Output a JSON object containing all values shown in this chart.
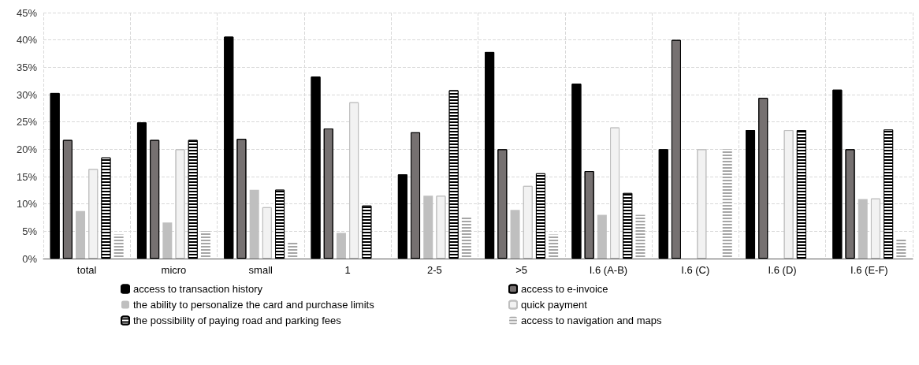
{
  "chart_data": {
    "type": "bar",
    "categories": [
      "total",
      "micro",
      "small",
      "1",
      "2-5",
      ">5",
      "I.6 (A-B)",
      "I.6 (C)",
      "I.6 (D)",
      "I.6 (E-F)"
    ],
    "series": [
      {
        "name": "access to transaction history",
        "color": "#000000",
        "values": [
          30.3,
          24.9,
          40.6,
          33.3,
          15.4,
          37.8,
          32.0,
          20.0,
          23.5,
          30.9
        ]
      },
      {
        "name": "access to e-invoice",
        "color": "#767171",
        "values": [
          21.7,
          21.7,
          21.9,
          23.8,
          23.1,
          20.0,
          16.0,
          40.0,
          29.4,
          20.0
        ]
      },
      {
        "name": "the ability to personalize the card and purchase limits",
        "color": "#bfbfbf",
        "values": [
          8.7,
          6.6,
          12.6,
          4.7,
          11.5,
          8.9,
          8.0,
          0,
          0,
          10.9
        ]
      },
      {
        "name": "quick payment",
        "color": "#f2f2f2",
        "values": [
          16.4,
          20.0,
          9.4,
          28.6,
          11.5,
          13.3,
          24.0,
          20.0,
          23.5,
          11.0
        ]
      },
      {
        "name": "the possibility of paying road and parking fees",
        "color": "#000000",
        "values": [
          18.5,
          21.7,
          12.6,
          9.7,
          30.8,
          15.6,
          12.0,
          0,
          23.5,
          23.6
        ]
      },
      {
        "name": "access to navigation and maps",
        "color": "#ffffff",
        "values": [
          4.4,
          5.0,
          3.1,
          0,
          7.7,
          4.4,
          8.0,
          20.0,
          0,
          3.6
        ]
      }
    ],
    "ylim": [
      0,
      45
    ],
    "yticks": [
      {
        "value": 0,
        "label": "0%"
      },
      {
        "value": 5,
        "label": "5%"
      },
      {
        "value": 10,
        "label": "10%"
      },
      {
        "value": 15,
        "label": "15%"
      },
      {
        "value": 20,
        "label": "20%"
      },
      {
        "value": 25,
        "label": "25%"
      },
      {
        "value": 30,
        "label": "30%"
      },
      {
        "value": 35,
        "label": "35%"
      },
      {
        "value": 40,
        "label": "40%"
      },
      {
        "value": 45,
        "label": "45%"
      }
    ],
    "grid": true,
    "legend": "bottom"
  }
}
